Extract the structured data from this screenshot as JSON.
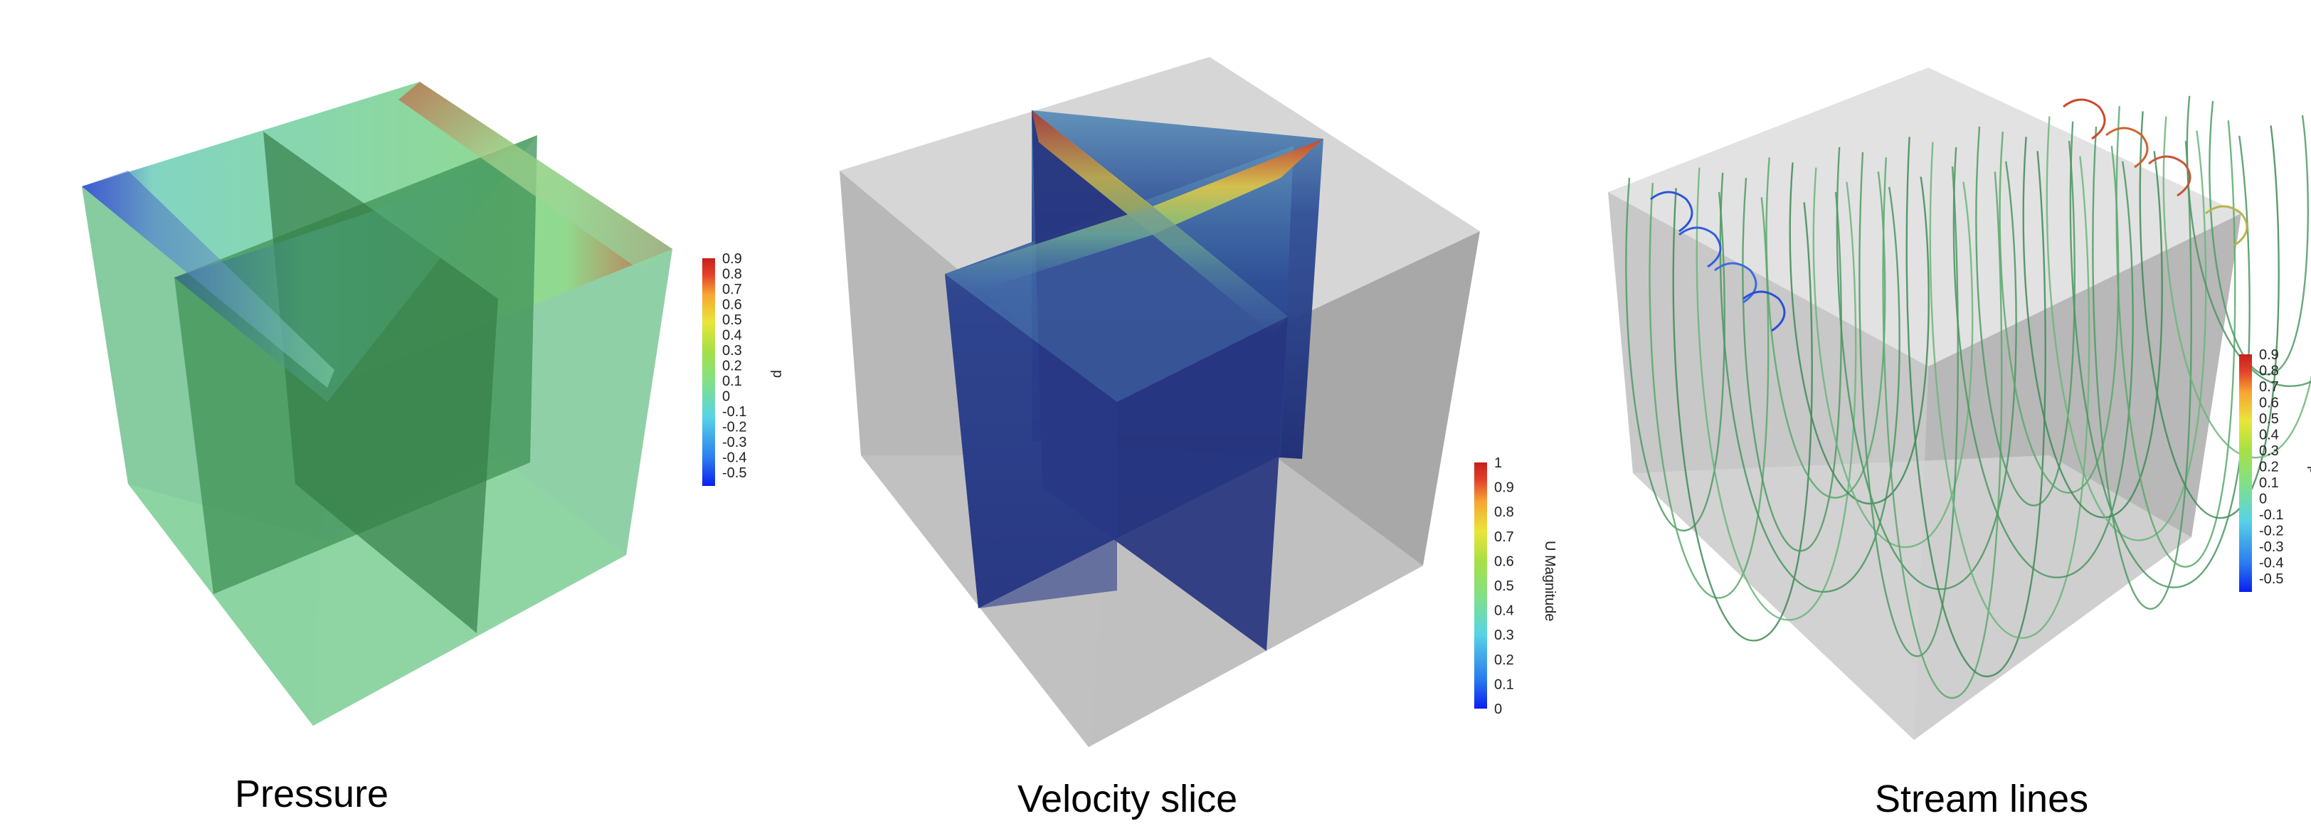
{
  "panels": [
    {
      "caption": "Pressure",
      "colorbar": {
        "title": "p",
        "ticks": [
          "0.9",
          "0.8",
          "0.7",
          "0.6",
          "0.5",
          "0.4",
          "0.3",
          "0.2",
          "0.1",
          "0",
          "-0.1",
          "-0.2",
          "-0.3",
          "-0.4",
          "-0.5"
        ]
      }
    },
    {
      "caption": "Velocity slice",
      "colorbar": {
        "title": "U Magnitude",
        "ticks": [
          "1",
          "0.9",
          "0.8",
          "0.7",
          "0.6",
          "0.5",
          "0.4",
          "0.3",
          "0.2",
          "0.1",
          "0"
        ]
      }
    },
    {
      "caption": "Stream lines",
      "colorbar": {
        "title": "p",
        "ticks": [
          "0.9",
          "0.8",
          "0.7",
          "0.6",
          "0.5",
          "0.4",
          "0.3",
          "0.2",
          "0.1",
          "0",
          "-0.1",
          "-0.2",
          "-0.3",
          "-0.4",
          "-0.5"
        ]
      }
    }
  ],
  "colors": {
    "rainbow": [
      "#0a1ff0",
      "#2b7bef",
      "#57d3e6",
      "#7fe08a",
      "#a8e045",
      "#e9e53a",
      "#f7a534",
      "#e2402a",
      "#c81f1a"
    ],
    "pressure_green": "#78cf95",
    "slice_blue": "#1e2e78",
    "box_gray": "#c9c9c9"
  }
}
